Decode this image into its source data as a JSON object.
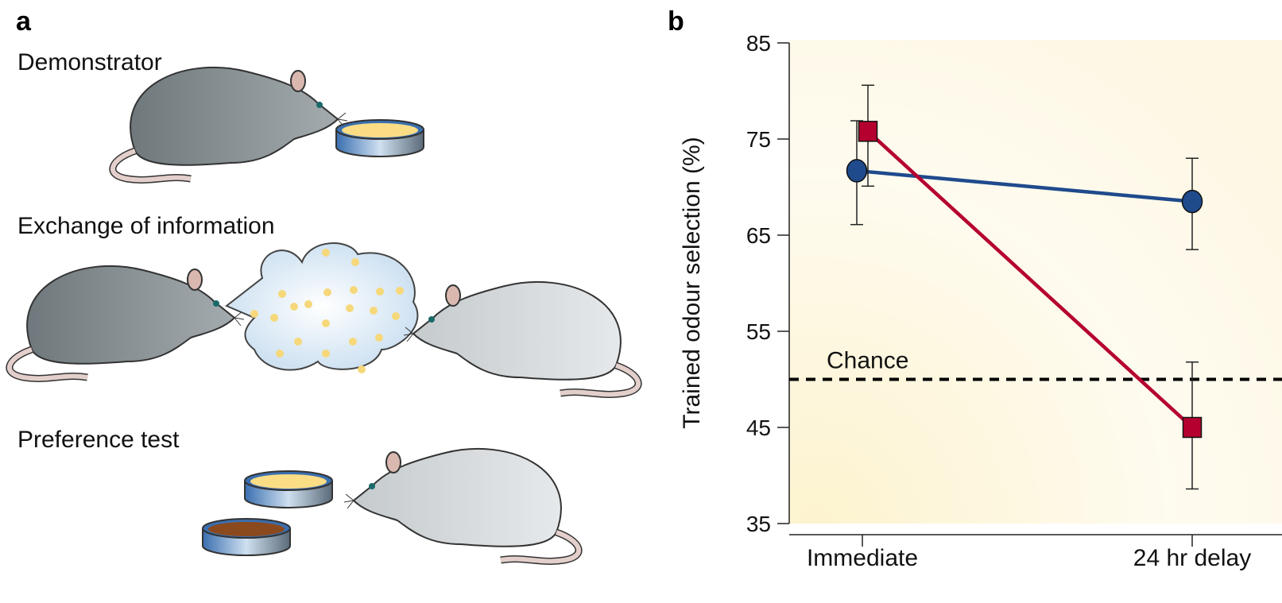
{
  "panel_a": {
    "letter": "a",
    "steps": [
      "Demonstrator",
      "Exchange of information",
      "Preference test"
    ]
  },
  "panel_b": {
    "letter": "b"
  },
  "chart_data": {
    "type": "line",
    "categories": [
      "Immediate",
      "24 hr delay"
    ],
    "ylabel": "Trained odour selection (%)",
    "xlabel": "",
    "ylim": [
      35,
      85
    ],
    "yticks": [
      35,
      45,
      55,
      65,
      75,
      85
    ],
    "grid": false,
    "series": [
      {
        "marker": "circle",
        "color": "#1f4a8c",
        "values": [
          71.7,
          68.5
        ],
        "error_low": [
          66.1,
          63.5
        ],
        "error_high": [
          76.9,
          73.0
        ]
      },
      {
        "marker": "square",
        "color": "#b5002f",
        "values": [
          75.8,
          45.0
        ],
        "error_low": [
          70.1,
          38.6
        ],
        "error_high": [
          80.6,
          51.8
        ]
      }
    ],
    "reference_line": {
      "label": "Chance",
      "value": 50,
      "style": "dashed"
    }
  }
}
